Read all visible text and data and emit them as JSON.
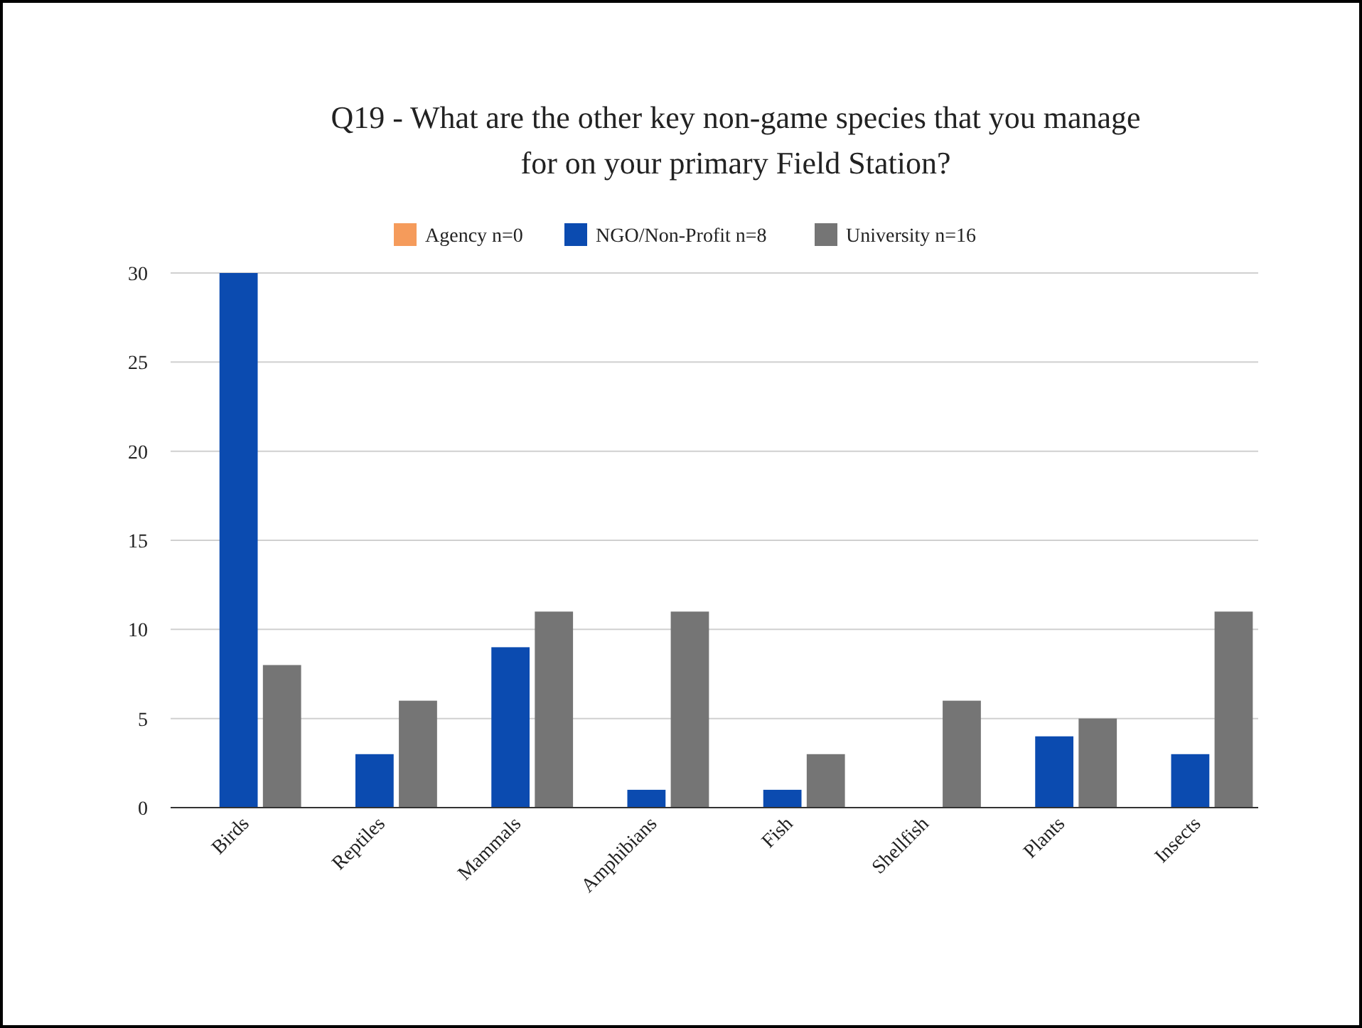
{
  "chart_data": {
    "type": "bar",
    "title": "Q19 - What are the other key non-game species that you manage for on your primary Field Station?",
    "categories": [
      "Birds",
      "Reptiles",
      "Mammals",
      "Amphibians",
      "Fish",
      "Shellfish",
      "Plants",
      "Insects"
    ],
    "series": [
      {
        "name": "Agency n=0",
        "color": "#f59b5b",
        "values": [
          0,
          0,
          0,
          0,
          0,
          0,
          0,
          0
        ]
      },
      {
        "name": "NGO/Non-Profit n=8",
        "color": "#0b4bb0",
        "values": [
          30,
          3,
          9,
          1,
          1,
          0,
          4,
          3
        ]
      },
      {
        "name": "University n=16",
        "color": "#757575",
        "values": [
          8,
          6,
          11,
          11,
          3,
          6,
          5,
          11
        ]
      }
    ],
    "ylim": [
      0,
      30
    ],
    "yticks": [
      0,
      5,
      10,
      15,
      20,
      25,
      30
    ],
    "grid": "y",
    "legend": "top"
  }
}
